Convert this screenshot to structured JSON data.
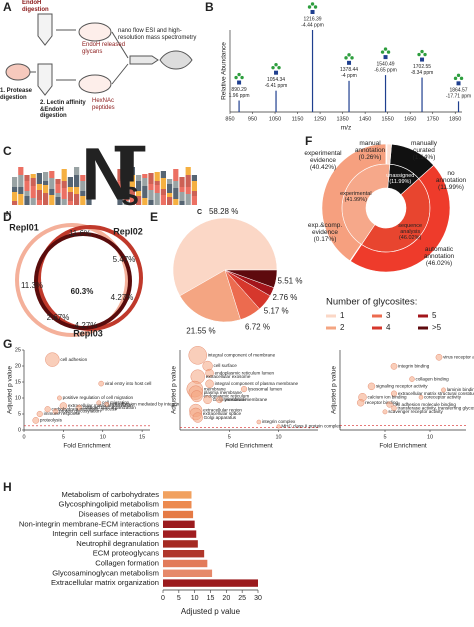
{
  "figure": {
    "panels": [
      "A",
      "B",
      "C",
      "D",
      "E",
      "F",
      "G",
      "H"
    ],
    "diagram": {
      "endoh_digestion": "EndoH digestion",
      "released": "EndoH released glycans",
      "ms": "nano flow ESI and high-resolution mass spectrometry",
      "protease": "1. Protease digestion",
      "lectin": "2. Lectin affinity &EndoH digestion",
      "peptides": "HexNAc peptides"
    },
    "logo": {
      "letters": [
        "N",
        "T",
        "S"
      ],
      "n_term": "N",
      "c_term": "C"
    }
  },
  "chart_data": [
    {
      "type": "stem",
      "panel": "B",
      "ylabel": "Relative Abundance",
      "xlabel": "m/z",
      "xlim": [
        850,
        1880
      ],
      "xticks": [
        850,
        950,
        1050,
        1150,
        1250,
        1350,
        1450,
        1550,
        1650,
        1750,
        1850
      ],
      "ylim": [
        0,
        100
      ],
      "color": "#1f3f8f",
      "label_color": "#c0392b",
      "x": [
        890.29,
        1054.34,
        1216.39,
        1378.44,
        1540.49,
        1702.55,
        1864.57
      ],
      "values": [
        14,
        26,
        100,
        38,
        45,
        42,
        13
      ],
      "peak_labels": [
        "890.29",
        "1054.34",
        "1216.39",
        "1378.44",
        "1540.49",
        "1702.55",
        "1864.57"
      ],
      "ppm_labels": [
        "1.96 ppm",
        "-6.41 ppm",
        "-4.44 ppm",
        "-4 ppm",
        "-6.65 ppm",
        "-8.34 ppm",
        "-17.71 ppm"
      ]
    },
    {
      "type": "venn",
      "panel": "D",
      "sets": [
        {
          "name": "Repl01",
          "color": "#f4b09a"
        },
        {
          "name": "Repl02",
          "color": "#c0392b"
        },
        {
          "name": "Repl03",
          "color": "#5a0c0c"
        }
      ],
      "values": [
        11.6,
        5.47,
        11.3,
        60.3,
        4.27,
        2.67,
        4.27
      ],
      "value_labels": [
        "11.6%",
        "5.47%",
        "11.3%",
        "60.3%",
        "4.27%",
        "2.67%",
        "4.27%"
      ]
    },
    {
      "type": "pie",
      "panel": "E",
      "legend_title": "Number of glycosites:",
      "categories": [
        "1",
        "2",
        "3",
        "4",
        "5",
        ">5"
      ],
      "values": [
        58.28,
        21.55,
        6.72,
        5.17,
        2.76,
        5.51
      ],
      "value_labels": [
        "58.28 %",
        "21.55 %",
        "6.72 %",
        "5.17 %",
        "2.76 %",
        "5.51 %"
      ],
      "colors": [
        "#fbd7c6",
        "#f4a582",
        "#ec6b4f",
        "#d6372c",
        "#a3151b",
        "#5e0a0e"
      ]
    },
    {
      "type": "sunburst",
      "panel": "F",
      "rings": [
        {
          "categories": [
            "unassigned (11.99%)",
            "sequence analysis (46.02%)",
            "experimental (41.99%)"
          ],
          "values": [
            11.99,
            46.02,
            41.99
          ],
          "colors": [
            "#111111",
            "#e8452f",
            "#f6a88a"
          ]
        },
        {
          "categories": [
            "no annotation (11.99%)",
            "automatic annotation (46.02%)",
            "exp.&comp. evidence (0.17%)",
            "experimental evidence (40.42%)",
            "manual annotation (0.26%)",
            "manually curated (1.14%)"
          ],
          "values": [
            11.99,
            46.02,
            0.17,
            40.42,
            0.26,
            1.14
          ],
          "colors": [
            "#111111",
            "#ee3b2b",
            "#f9c7b1",
            "#f6a07f",
            "#fff1ea",
            "#fde0d4"
          ]
        }
      ]
    },
    {
      "type": "scatter",
      "panel": "G",
      "xlabel": "Fold Enrichment",
      "ylabel": "Adjusted p value",
      "xlim": [
        0,
        16
      ],
      "xticks": [
        0,
        5,
        10,
        15
      ],
      "ylim": [
        0,
        25
      ],
      "yticks": [
        0,
        5,
        10,
        15,
        20,
        25
      ],
      "threshold": 1.3,
      "color": "#f4a582",
      "categories": [
        "cell adhesion",
        "viral entry into host cell",
        "positive regulation of cell migration",
        "cell migration",
        "cell adhesion mediated by integrin",
        "extracellular matrix organization",
        "collagen fibril organization",
        "carbohydrate metabolic process",
        "protein glycosylation",
        "immune response",
        "proteolysis"
      ],
      "x": [
        3.6,
        9.8,
        4.5,
        9.5,
        10.5,
        5,
        7,
        3,
        4,
        2,
        1.5
      ],
      "values": [
        22,
        14.5,
        10,
        8.5,
        8,
        7.5,
        7,
        6.5,
        5.8,
        5,
        3
      ],
      "sizes": [
        60,
        8,
        6,
        6,
        6,
        15,
        8,
        10,
        8,
        10,
        12
      ]
    },
    {
      "type": "scatter",
      "xlabel": "Fold Enrichment",
      "ylabel": "Adjusted p value",
      "xlim": [
        0,
        14
      ],
      "xticks": [
        5,
        10
      ],
      "ylim": [
        0,
        45
      ],
      "threshold": 1.3,
      "color": "#f4a582",
      "categories": [
        "integral component of membrane",
        "cell surface",
        "endoplasmic reticulum lumen",
        "extracellular exosome",
        "integral component of plasma membrane",
        "membrane",
        "lysosomal lumen",
        "plasma membrane",
        "endoplasmic reticulum",
        "Golgi membrane",
        "lysosomal membrane",
        "extracellular region",
        "extracellular space",
        "Golgi apparatus",
        "integrin complex",
        "MHC class II protein complex"
      ],
      "x": [
        1.8,
        2.8,
        3,
        1.8,
        3,
        1.5,
        6.5,
        1.6,
        1.7,
        2.8,
        4,
        1.6,
        1.6,
        1.8,
        8,
        10
      ],
      "values": [
        42,
        36,
        32,
        30,
        26,
        23,
        23,
        21,
        19,
        17,
        17,
        11,
        9,
        7,
        4.5,
        2
      ],
      "sizes": [
        100,
        30,
        20,
        60,
        20,
        80,
        10,
        60,
        40,
        20,
        12,
        50,
        45,
        30,
        5,
        4
      ]
    },
    {
      "type": "scatter",
      "xlabel": "Fold Enrichment",
      "ylabel": "Adjusted p value",
      "xlim": [
        0,
        14
      ],
      "xticks": [
        5,
        10
      ],
      "ylim": [
        0,
        22
      ],
      "threshold": 1.3,
      "color": "#f4a582",
      "categories": [
        "virus receptor activity",
        "integrin binding",
        "collagen binding",
        "signaling receptor activity",
        "laminin binding",
        "extracellular matrix structural constituent",
        "calcium ion binding",
        "coreceptor activity",
        "receptor binding",
        "cell adhesion molecule binding",
        "transferase activity, transferring glycosyl",
        "scavenger receptor activity"
      ],
      "x": [
        11,
        6,
        8,
        3.5,
        11.5,
        6,
        2.5,
        9,
        2.3,
        5.5,
        6,
        5
      ],
      "values": [
        20,
        17.5,
        14,
        12,
        11,
        10,
        9,
        9,
        7.5,
        7,
        6,
        5
      ],
      "sizes": [
        12,
        12,
        8,
        15,
        6,
        10,
        20,
        5,
        15,
        10,
        8,
        6
      ]
    },
    {
      "type": "barh",
      "panel": "H",
      "xlabel": "Adjusted p value",
      "xlim": [
        0,
        30
      ],
      "xticks": [
        0,
        5,
        10,
        15,
        20,
        25,
        30
      ],
      "categories": [
        "Metabolism of carbohydrates",
        "Glycosphingolipid metabolism",
        "Diseases of metabolism",
        "Non-integrin membrane-ECM interactions",
        "Integrin cell surface interactions",
        "Neutrophil degranulation",
        "ECM proteoglycans",
        "Collagen formation",
        "Glycosaminoglycan metabolism",
        "Extracellular matrix organization"
      ],
      "values": [
        9,
        9,
        9.5,
        10,
        10.5,
        11,
        13,
        14,
        15.5,
        30
      ],
      "colors": [
        "#f1a15f",
        "#ec8a4f",
        "#e57a45",
        "#9b1b1e",
        "#a01d20",
        "#a52a22",
        "#b0362b",
        "#e27b5a",
        "#e6896a",
        "#9b1b1e"
      ]
    }
  ]
}
